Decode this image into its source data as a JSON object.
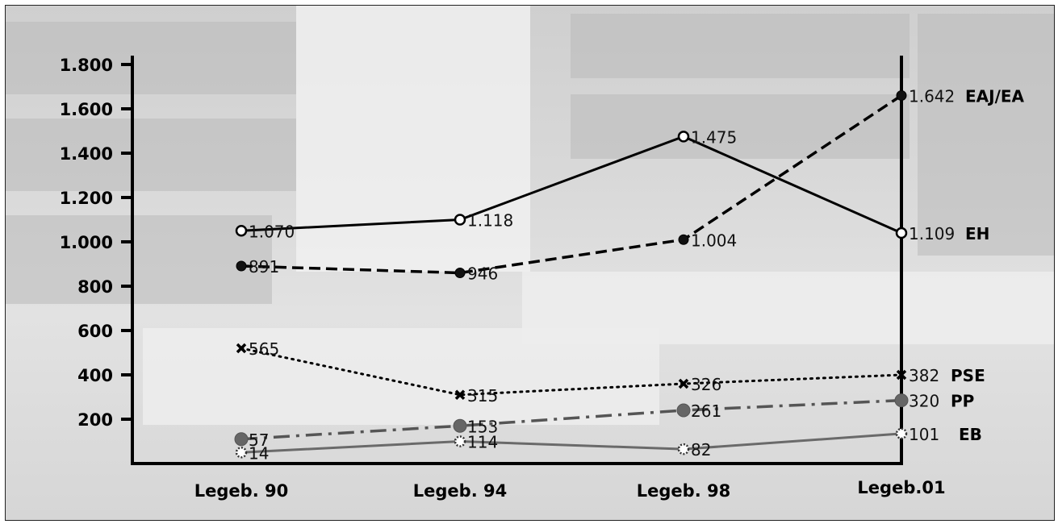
{
  "chart_data": {
    "type": "line",
    "categories": [
      "Legeb. 90",
      "Legeb. 94",
      "Legeb. 98",
      "Legeb.01"
    ],
    "yticks": [
      "1.800",
      "1.600",
      "1.400",
      "1.200",
      "1.000",
      "800",
      "600",
      "400",
      "200"
    ],
    "yticks_values": [
      1800,
      1600,
      1400,
      1200,
      1000,
      800,
      600,
      400,
      200
    ],
    "ylim": [
      0,
      1900
    ],
    "grid": false,
    "series": [
      {
        "name": "EH",
        "values": [
          1070,
          1118,
          1475,
          1109
        ],
        "labels": [
          "1.070",
          "1.118",
          "1.475",
          "1.109"
        ],
        "display_values": [
          1050,
          1100,
          1475,
          1040
        ],
        "style": "solid",
        "marker": "open-circle",
        "color": "#000000"
      },
      {
        "name": "EAJ/EA",
        "values": [
          891,
          946,
          1004,
          1642
        ],
        "labels": [
          "891",
          "946",
          "1.004",
          "1.642"
        ],
        "display_values": [
          891,
          860,
          1010,
          1660
        ],
        "style": "dashed",
        "marker": "filled-circle",
        "color": "#000000"
      },
      {
        "name": "PSE",
        "values": [
          565,
          315,
          326,
          382
        ],
        "labels": [
          "565",
          "315",
          "326",
          "382"
        ],
        "display_values": [
          520,
          310,
          360,
          400
        ],
        "style": "dotted",
        "marker": "x",
        "color": "#000000"
      },
      {
        "name": "PP",
        "values": [
          57,
          153,
          261,
          320
        ],
        "labels": [
          "57",
          "153",
          "261",
          "320"
        ],
        "display_values": [
          110,
          170,
          240,
          285
        ],
        "style": "dash-dot",
        "marker": "gray-circle",
        "color": "#555555"
      },
      {
        "name": "EB",
        "values": [
          14,
          114,
          82,
          101
        ],
        "labels": [
          "14",
          "114",
          "82",
          "101"
        ],
        "display_values": [
          50,
          100,
          65,
          135
        ],
        "style": "solid-gray",
        "marker": "flower",
        "color": "#6a6a6a"
      }
    ]
  }
}
